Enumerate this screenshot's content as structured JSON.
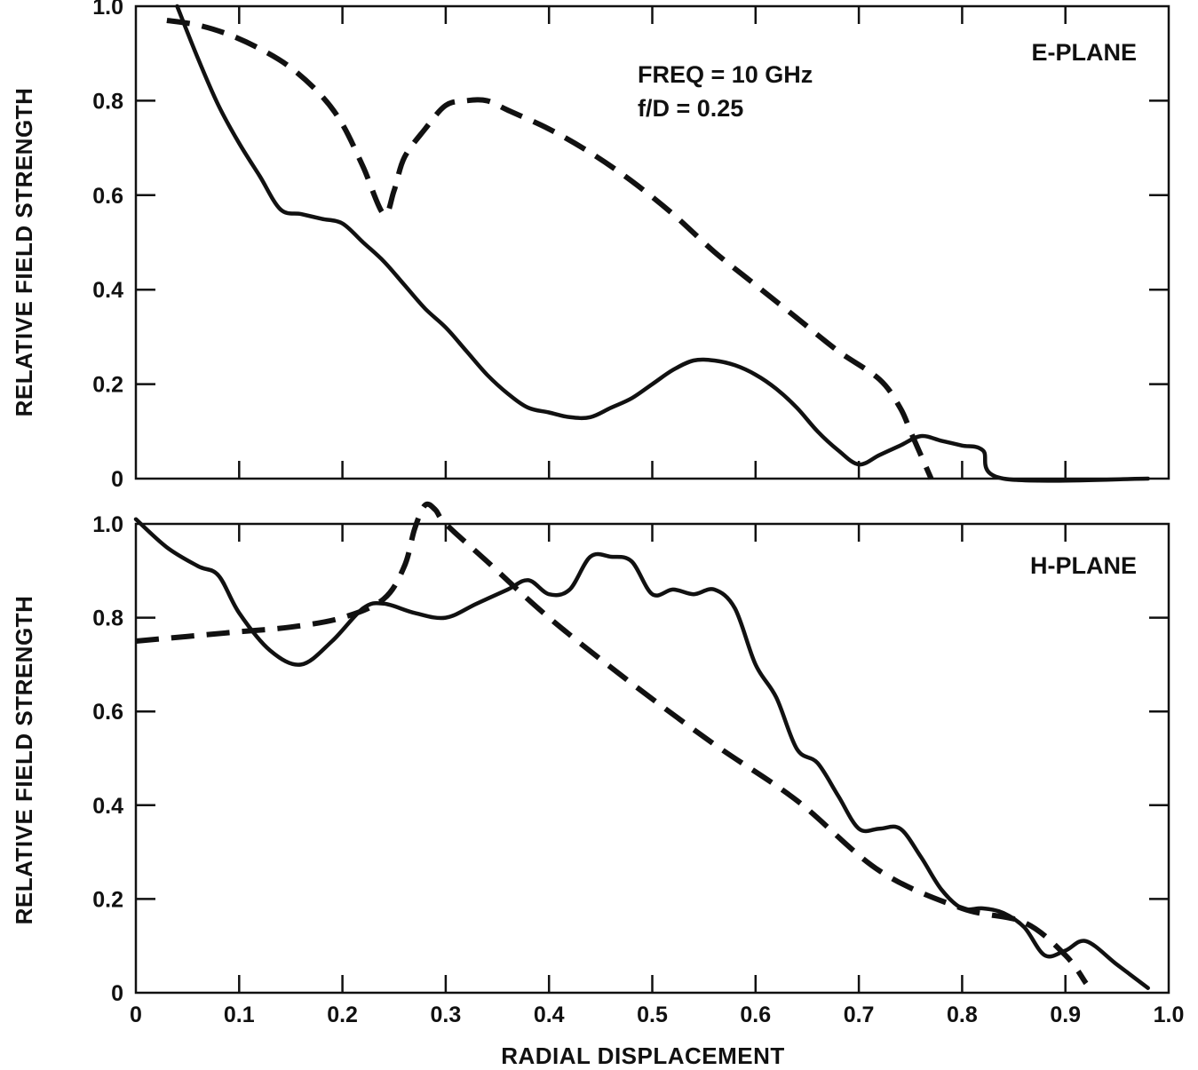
{
  "chart_data": [
    {
      "type": "line",
      "title": "",
      "annotations": [
        "E-PLANE",
        "FREQ = 10 GHz",
        "f/D = 0.25"
      ],
      "xlabel": "",
      "ylabel": "RELATIVE FIELD STRENGTH",
      "xlim": [
        0,
        1.0
      ],
      "ylim": [
        0,
        1.0
      ],
      "yticks": [
        "0",
        "0.2",
        "0.4",
        "0.6",
        "0.8",
        "1.0"
      ],
      "grid": false,
      "series": [
        {
          "style": "solid",
          "x": [
            0.04,
            0.06,
            0.08,
            0.1,
            0.12,
            0.14,
            0.16,
            0.18,
            0.2,
            0.22,
            0.24,
            0.26,
            0.28,
            0.3,
            0.32,
            0.34,
            0.36,
            0.38,
            0.4,
            0.42,
            0.44,
            0.46,
            0.48,
            0.5,
            0.52,
            0.54,
            0.56,
            0.58,
            0.6,
            0.62,
            0.64,
            0.66,
            0.68,
            0.7,
            0.72,
            0.74,
            0.76,
            0.78,
            0.8,
            0.82,
            0.84,
            0.98
          ],
          "y": [
            1.0,
            0.89,
            0.79,
            0.71,
            0.64,
            0.57,
            0.56,
            0.55,
            0.54,
            0.5,
            0.46,
            0.41,
            0.36,
            0.32,
            0.27,
            0.22,
            0.18,
            0.15,
            0.14,
            0.13,
            0.13,
            0.15,
            0.17,
            0.2,
            0.23,
            0.25,
            0.25,
            0.24,
            0.22,
            0.19,
            0.15,
            0.1,
            0.06,
            0.03,
            0.05,
            0.07,
            0.09,
            0.08,
            0.07,
            0.06,
            0.0,
            0.0
          ]
        },
        {
          "style": "dashed",
          "x": [
            0.03,
            0.06,
            0.09,
            0.12,
            0.15,
            0.18,
            0.2,
            0.22,
            0.24,
            0.25,
            0.26,
            0.28,
            0.3,
            0.32,
            0.34,
            0.36,
            0.4,
            0.44,
            0.48,
            0.52,
            0.56,
            0.6,
            0.64,
            0.68,
            0.72,
            0.74,
            0.75,
            0.76,
            0.77
          ],
          "y": [
            0.97,
            0.96,
            0.94,
            0.91,
            0.87,
            0.81,
            0.75,
            0.66,
            0.56,
            0.61,
            0.68,
            0.74,
            0.79,
            0.8,
            0.8,
            0.78,
            0.74,
            0.69,
            0.63,
            0.56,
            0.48,
            0.41,
            0.34,
            0.27,
            0.21,
            0.15,
            0.1,
            0.05,
            0.0
          ]
        }
      ]
    },
    {
      "type": "line",
      "title": "",
      "annotations": [
        "H-PLANE"
      ],
      "xlabel": "RADIAL DISPLACEMENT",
      "ylabel": "RELATIVE FIELD STRENGTH",
      "xlim": [
        0,
        1.0
      ],
      "ylim": [
        0,
        1.0
      ],
      "xticks": [
        "0",
        "0.1",
        "0.2",
        "0.3",
        "0.4",
        "0.5",
        "0.6",
        "0.7",
        "0.8",
        "0.9",
        "1.0"
      ],
      "yticks": [
        "0",
        "0.2",
        "0.4",
        "0.6",
        "0.8",
        "1.0"
      ],
      "grid": false,
      "series": [
        {
          "style": "solid",
          "x": [
            0.0,
            0.03,
            0.06,
            0.08,
            0.1,
            0.13,
            0.16,
            0.19,
            0.22,
            0.24,
            0.27,
            0.3,
            0.33,
            0.36,
            0.38,
            0.4,
            0.42,
            0.44,
            0.46,
            0.48,
            0.5,
            0.52,
            0.54,
            0.56,
            0.58,
            0.6,
            0.62,
            0.64,
            0.66,
            0.68,
            0.7,
            0.72,
            0.74,
            0.76,
            0.78,
            0.8,
            0.82,
            0.84,
            0.86,
            0.88,
            0.9,
            0.92,
            0.95,
            0.98
          ],
          "y": [
            1.01,
            0.95,
            0.91,
            0.89,
            0.81,
            0.73,
            0.7,
            0.75,
            0.82,
            0.83,
            0.81,
            0.8,
            0.83,
            0.86,
            0.88,
            0.85,
            0.86,
            0.93,
            0.93,
            0.92,
            0.85,
            0.86,
            0.85,
            0.86,
            0.82,
            0.7,
            0.63,
            0.52,
            0.49,
            0.42,
            0.35,
            0.35,
            0.35,
            0.29,
            0.22,
            0.18,
            0.18,
            0.17,
            0.14,
            0.08,
            0.09,
            0.11,
            0.06,
            0.01
          ]
        },
        {
          "style": "dashed",
          "x": [
            0.0,
            0.05,
            0.1,
            0.15,
            0.2,
            0.24,
            0.26,
            0.27,
            0.28,
            0.29,
            0.3,
            0.34,
            0.4,
            0.48,
            0.56,
            0.64,
            0.72,
            0.8,
            0.86,
            0.9,
            0.92
          ],
          "y": [
            0.75,
            0.76,
            0.77,
            0.78,
            0.8,
            0.84,
            0.91,
            0.99,
            1.04,
            1.03,
            1.0,
            0.92,
            0.8,
            0.66,
            0.53,
            0.41,
            0.26,
            0.18,
            0.15,
            0.08,
            0.02
          ]
        }
      ]
    }
  ]
}
